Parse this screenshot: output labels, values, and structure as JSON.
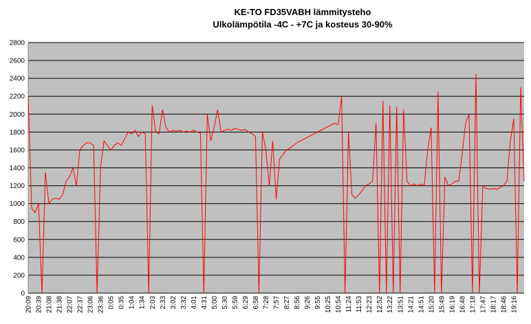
{
  "chart_data": {
    "type": "line",
    "title": "KE-TO FD35VABH lämmitysteho",
    "subtitle": "Ulkolämpötila  -4C - +7C ja kosteus 30-90%",
    "categories": [
      "20:09",
      null,
      null,
      "20:39",
      null,
      null,
      "21:08",
      null,
      null,
      "21:38",
      null,
      null,
      "22:07",
      null,
      null,
      "22:37",
      null,
      null,
      "23:06",
      null,
      null,
      "23:36",
      null,
      null,
      "0:05",
      null,
      null,
      "0:35",
      null,
      null,
      "1:04",
      null,
      null,
      "1:34",
      null,
      null,
      "2:03",
      null,
      null,
      "2:33",
      null,
      null,
      "3:02",
      null,
      null,
      "3:32",
      null,
      null,
      "4:01",
      null,
      null,
      "4:31",
      null,
      null,
      "5:00",
      null,
      null,
      "5:30",
      null,
      null,
      "5:59",
      null,
      null,
      "6:29",
      null,
      null,
      "6:58",
      null,
      null,
      "7:28",
      null,
      null,
      "7:57",
      null,
      null,
      "8:27",
      null,
      null,
      "8:56",
      null,
      null,
      "9:26",
      null,
      null,
      "9:55",
      null,
      null,
      "10:25",
      null,
      null,
      "10:54",
      null,
      null,
      "11:24",
      null,
      null,
      "11:53",
      null,
      null,
      "12:23",
      null,
      null,
      "12:52",
      null,
      null,
      "13:22",
      null,
      null,
      "13:51",
      null,
      null,
      "14:21",
      null,
      null,
      "14:51",
      null,
      null,
      "15:20",
      null,
      null,
      "15:49",
      null,
      null,
      "16:19",
      null,
      null,
      "16:48",
      null,
      null,
      "17:18",
      null,
      null,
      "17:47",
      null,
      null,
      "18:17",
      null,
      null,
      "18:46",
      null,
      null,
      "19:16",
      null,
      null,
      null
    ],
    "series": [
      {
        "name": null,
        "color": "#ff0000",
        "values": [
          2200,
          950,
          900,
          1000,
          0,
          1350,
          1000,
          1050,
          1060,
          1050,
          1100,
          1250,
          1300,
          1400,
          1200,
          1600,
          1650,
          1680,
          1680,
          1650,
          0,
          1400,
          1700,
          1650,
          1600,
          1650,
          1680,
          1650,
          1720,
          1800,
          1780,
          1820,
          1750,
          1800,
          1780,
          0,
          2100,
          1800,
          1780,
          2050,
          1850,
          1800,
          1820,
          1810,
          1820,
          1800,
          1810,
          1800,
          1820,
          1800,
          1790,
          0,
          2000,
          1700,
          1850,
          2050,
          1800,
          1820,
          1830,
          1820,
          1840,
          1830,
          1820,
          1830,
          1800,
          1780,
          1750,
          0,
          1800,
          1600,
          1200,
          1700,
          1050,
          1500,
          1550,
          1600,
          1620,
          1650,
          1680,
          1700,
          1720,
          1740,
          1760,
          1780,
          1800,
          1820,
          1840,
          1860,
          1880,
          1900,
          1880,
          2200,
          0,
          1800,
          1100,
          1060,
          1100,
          1150,
          1200,
          1220,
          1250,
          1900,
          0,
          2150,
          0,
          2100,
          0,
          2080,
          0,
          2050,
          1250,
          1200,
          1220,
          1200,
          1220,
          1200,
          1600,
          1850,
          0,
          2250,
          0,
          1300,
          1200,
          1220,
          1250,
          1250,
          1550,
          1900,
          2000,
          0,
          2450,
          0,
          1200,
          1170,
          1160,
          1170,
          1160,
          1180,
          1200,
          1250,
          1700,
          1950,
          0,
          2300,
          1250
        ]
      }
    ],
    "ylim": [
      0,
      2800
    ],
    "yticks": [
      0,
      200,
      400,
      600,
      800,
      1000,
      1200,
      1400,
      1600,
      1800,
      2000,
      2200,
      2400,
      2600,
      2800
    ],
    "grid": true
  }
}
